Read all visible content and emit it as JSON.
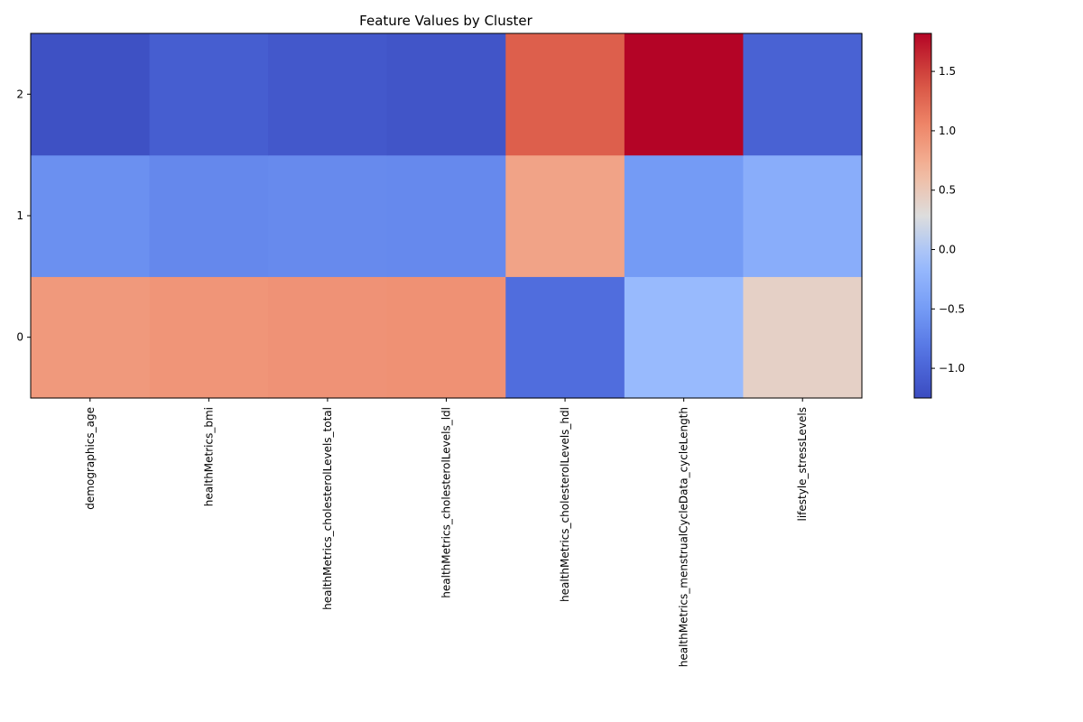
{
  "chart_data": {
    "type": "heatmap",
    "title": "Feature Values by Cluster",
    "xlabel": "",
    "ylabel": "",
    "x_categories": [
      "demographics_age",
      "healthMetrics_bmi",
      "healthMetrics_cholesterolLevels_total",
      "healthMetrics_cholesterolLevels_ldl",
      "healthMetrics_cholesterolLevels_hdl",
      "healthMetrics_menstrualCycleData_cycleLength",
      "lifestyle_stressLevels"
    ],
    "y_categories": [
      "0",
      "1",
      "2"
    ],
    "values": [
      [
        0.9,
        0.93,
        0.95,
        0.96,
        -0.92,
        -0.15,
        0.42
      ],
      [
        -0.6,
        -0.67,
        -0.65,
        -0.66,
        0.82,
        -0.5,
        -0.3
      ],
      [
        -1.2,
        -1.07,
        -1.13,
        -1.16,
        1.32,
        1.82,
        -1.03
      ]
    ],
    "colormap": "coolwarm",
    "colorbar": {
      "vmin": -1.25,
      "vmax": 1.82,
      "ticks": [
        -1.0,
        -0.5,
        0.0,
        0.5,
        1.0,
        1.5
      ],
      "tick_labels": [
        "−1.0",
        "−0.5",
        "0.0",
        "0.5",
        "1.0",
        "1.5"
      ]
    },
    "grid": false
  }
}
